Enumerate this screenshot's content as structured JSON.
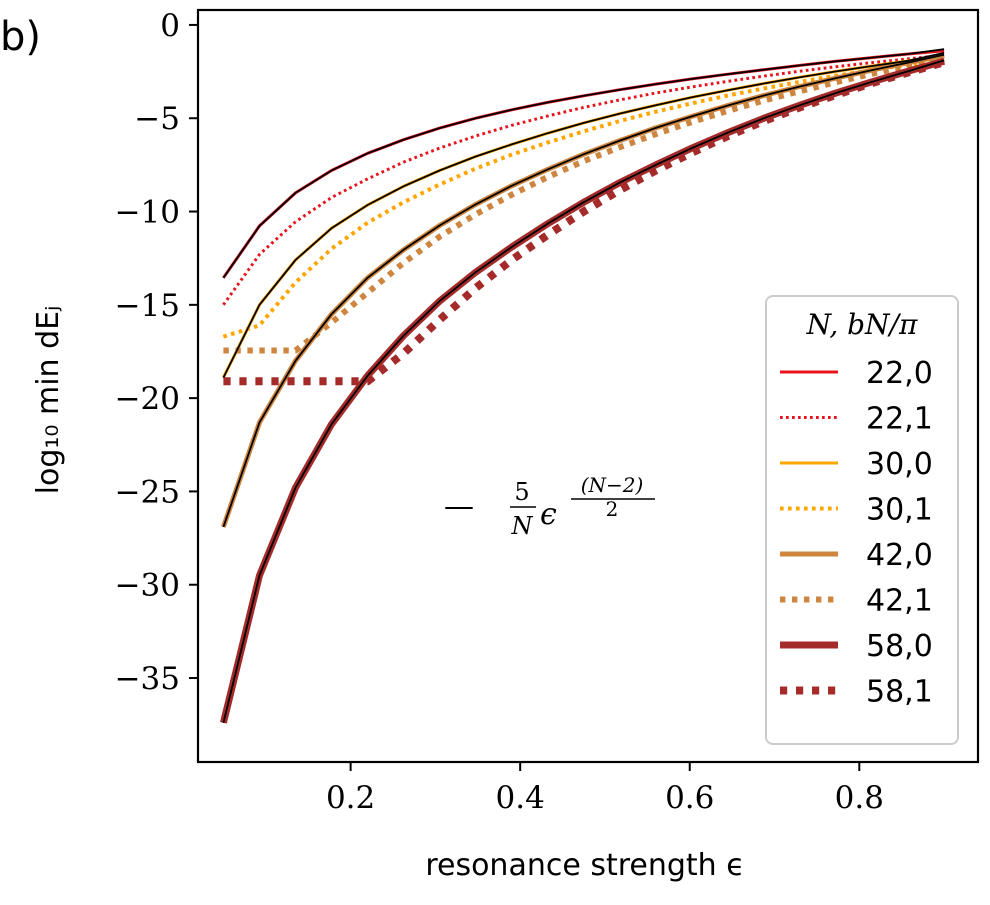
{
  "panel_label": "b)",
  "colors": {
    "red": "#e8141c",
    "orange": "#ffa500",
    "tan": "#cd853f",
    "brown": "#a52a2a",
    "fit": "#000000"
  },
  "chart_data": {
    "type": "line",
    "title": "",
    "xlabel": "resonance strength ϵ",
    "ylabel": "log₁₀ min dEⱼ",
    "xlim": [
      0.02,
      0.94
    ],
    "ylim": [
      -39.5,
      0.8
    ],
    "xticks": [
      0.2,
      0.4,
      0.6,
      0.8
    ],
    "xtick_labels": [
      "0.2",
      "0.4",
      "0.6",
      "0.8"
    ],
    "yticks": [
      0,
      -5,
      -10,
      -15,
      -20,
      -25,
      -30,
      -35
    ],
    "ytick_labels": [
      "0",
      "−5",
      "−10",
      "−15",
      "−20",
      "−25",
      "−30",
      "−35"
    ],
    "grid": false,
    "legend": {
      "title": "N, bN/π",
      "position": "lower right",
      "entries": [
        "22,0",
        "22,1",
        "30,0",
        "30,1",
        "42,0",
        "42,1",
        "58,0",
        "58,1"
      ]
    },
    "annotation": {
      "dash": "—",
      "coef_num": "5",
      "coef_den": "N",
      "base": "ϵ",
      "exp_num": "(N−2)",
      "exp_den": "2"
    },
    "x": [
      0.05,
      0.0925,
      0.135,
      0.1775,
      0.22,
      0.2625,
      0.305,
      0.3475,
      0.39,
      0.4325,
      0.475,
      0.5175,
      0.56,
      0.6025,
      0.645,
      0.6875,
      0.73,
      0.7725,
      0.815,
      0.8575,
      0.9
    ],
    "series": [
      {
        "name": "22,0",
        "color": "#e8141c",
        "dash": "solid",
        "width": 3,
        "values": [
          -13.55,
          -10.77,
          -9.0,
          -7.8,
          -6.88,
          -6.15,
          -5.53,
          -5.0,
          -4.55,
          -4.15,
          -3.8,
          -3.47,
          -3.17,
          -2.89,
          -2.64,
          -2.4,
          -2.17,
          -1.95,
          -1.75,
          -1.56,
          -1.38
        ]
      },
      {
        "name": "22,1",
        "color": "#e8141c",
        "dash": "dotted",
        "width": 3,
        "values": [
          -15.0,
          -12.3,
          -10.55,
          -9.25,
          -8.25,
          -7.35,
          -6.6,
          -5.95,
          -5.38,
          -4.88,
          -4.42,
          -4.02,
          -3.65,
          -3.32,
          -3.02,
          -2.74,
          -2.48,
          -2.24,
          -2.02,
          -1.82,
          -1.62
        ]
      },
      {
        "name": "30,0",
        "color": "#ffa500",
        "dash": "solid",
        "width": 3,
        "values": [
          -18.9,
          -15.0,
          -12.6,
          -10.9,
          -9.65,
          -8.65,
          -7.8,
          -7.05,
          -6.4,
          -5.8,
          -5.25,
          -4.75,
          -4.3,
          -3.88,
          -3.5,
          -3.14,
          -2.8,
          -2.49,
          -2.2,
          -1.92,
          -1.66
        ]
      },
      {
        "name": "30,1",
        "color": "#ffa500",
        "dash": "dotted",
        "width": 4,
        "values": [
          -16.7,
          -16.1,
          -13.8,
          -12.0,
          -10.6,
          -9.5,
          -8.55,
          -7.7,
          -6.95,
          -6.3,
          -5.7,
          -5.15,
          -4.65,
          -4.2,
          -3.78,
          -3.4,
          -3.05,
          -2.72,
          -2.42,
          -2.13,
          -1.86
        ]
      },
      {
        "name": "42,0",
        "color": "#cd853f",
        "dash": "solid",
        "width": 5,
        "values": [
          -26.9,
          -21.3,
          -18.0,
          -15.5,
          -13.55,
          -12.05,
          -10.75,
          -9.62,
          -8.62,
          -7.74,
          -6.93,
          -6.2,
          -5.52,
          -4.9,
          -4.32,
          -3.78,
          -3.3,
          -2.85,
          -2.42,
          -2.02,
          -1.65
        ]
      },
      {
        "name": "42,1",
        "color": "#cd853f",
        "dash": "dotted",
        "width": 6,
        "values": [
          -17.45,
          -17.45,
          -17.45,
          -15.95,
          -14.35,
          -12.75,
          -11.35,
          -10.15,
          -9.1,
          -8.15,
          -7.3,
          -6.55,
          -5.85,
          -5.2,
          -4.6,
          -4.05,
          -3.55,
          -3.07,
          -2.62,
          -2.2,
          -1.82
        ]
      },
      {
        "name": "58,0",
        "color": "#a52a2a",
        "dash": "solid",
        "width": 7,
        "values": [
          -37.4,
          -29.5,
          -24.8,
          -21.4,
          -18.8,
          -16.65,
          -14.8,
          -13.25,
          -11.9,
          -10.65,
          -9.5,
          -8.45,
          -7.5,
          -6.6,
          -5.77,
          -5.0,
          -4.3,
          -3.65,
          -3.05,
          -2.48,
          -1.95
        ]
      },
      {
        "name": "58,1",
        "color": "#a52a2a",
        "dash": "dotted",
        "width": 8,
        "values": [
          -19.1,
          -19.1,
          -19.1,
          -19.1,
          -19.1,
          -17.6,
          -15.8,
          -14.1,
          -12.6,
          -11.25,
          -10.0,
          -8.85,
          -7.8,
          -6.85,
          -5.95,
          -5.15,
          -4.42,
          -3.75,
          -3.12,
          -2.55,
          -2.0
        ]
      }
    ],
    "fits": [
      {
        "values": [
          -13.55,
          -10.77,
          -9.0,
          -7.8,
          -6.88,
          -6.15,
          -5.53,
          -5.0,
          -4.55,
          -4.15,
          -3.8,
          -3.47,
          -3.17,
          -2.89,
          -2.64,
          -2.4,
          -2.17,
          -1.95,
          -1.75,
          -1.56,
          -1.3
        ]
      },
      {
        "values": [
          -18.9,
          -15.0,
          -12.6,
          -10.9,
          -9.65,
          -8.65,
          -7.8,
          -7.05,
          -6.4,
          -5.8,
          -5.25,
          -4.75,
          -4.3,
          -3.88,
          -3.5,
          -3.14,
          -2.8,
          -2.49,
          -2.2,
          -1.92,
          -1.5
        ]
      },
      {
        "values": [
          -26.9,
          -21.3,
          -18.0,
          -15.5,
          -13.55,
          -12.05,
          -10.75,
          -9.62,
          -8.62,
          -7.74,
          -6.93,
          -6.2,
          -5.52,
          -4.9,
          -4.32,
          -3.78,
          -3.3,
          -2.85,
          -2.42,
          -2.02,
          -1.6
        ]
      },
      {
        "values": [
          -37.4,
          -29.5,
          -24.8,
          -21.4,
          -18.8,
          -16.65,
          -14.8,
          -13.25,
          -11.9,
          -10.65,
          -9.5,
          -8.45,
          -7.5,
          -6.6,
          -5.77,
          -5.0,
          -4.3,
          -3.65,
          -3.05,
          -2.48,
          -1.9
        ]
      }
    ]
  }
}
